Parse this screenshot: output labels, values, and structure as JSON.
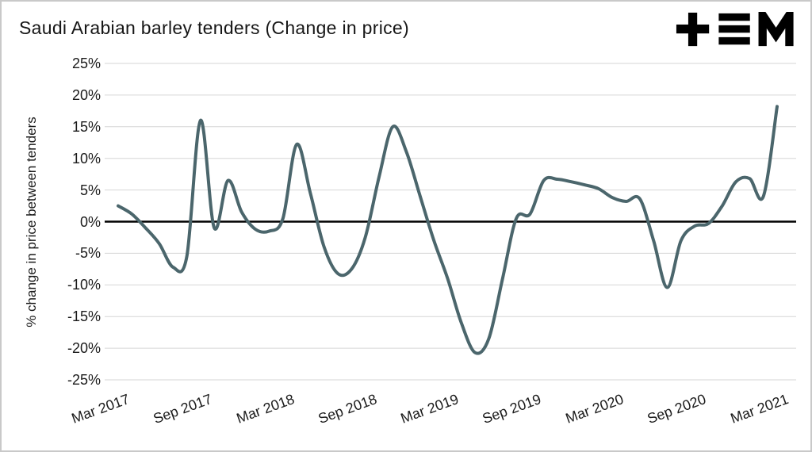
{
  "header": {
    "title": "Saudi Arabian barley tenders (Change in price)",
    "logo_icon": "tem-logo"
  },
  "chart_data": {
    "type": "line",
    "title": "Saudi Arabian barley tenders (Change in price)",
    "xlabel": "",
    "ylabel": "% change in price between tenders",
    "ylim": [
      -25,
      25
    ],
    "ytick_step": 5,
    "yticks": [
      "25%",
      "20%",
      "15%",
      "10%",
      "5%",
      "0%",
      "-5%",
      "-10%",
      "-15%",
      "-20%",
      "-25%"
    ],
    "xticks": [
      "Mar 2017",
      "Sep 2017",
      "Mar 2018",
      "Sep 2018",
      "Mar 2019",
      "Sep 2019",
      "Mar 2020",
      "Sep 2020",
      "Mar 2021"
    ],
    "x_tick_positions": [
      0,
      6,
      12,
      18,
      24,
      30,
      36,
      42,
      48
    ],
    "x_unit": "months since Mar 2017 (monthly estimates read from curve)",
    "grid": "horizontal",
    "legend": "none",
    "zero_line": true,
    "colors": {
      "line": "#4b666c",
      "grid": "#d6d6d6",
      "zero_line": "#000000",
      "text": "#1a1a1a"
    },
    "series": [
      {
        "name": "% change in price between tenders",
        "x": [
          0,
          1,
          2,
          3,
          4,
          5,
          6,
          7,
          8,
          9,
          10,
          11,
          12,
          13,
          14,
          15,
          16,
          17,
          18,
          19,
          20,
          21,
          22,
          23,
          24,
          25,
          26,
          27,
          28,
          29,
          30,
          31,
          32,
          33,
          34,
          35,
          36,
          37,
          38,
          39,
          40,
          41,
          42,
          43,
          44,
          45,
          46,
          47,
          48
        ],
        "values": [
          2.5,
          1.2,
          -1.0,
          -3.5,
          -7.2,
          -5.5,
          16.0,
          -1.0,
          6.5,
          1.5,
          -1.2,
          -1.5,
          0.5,
          12.2,
          4.5,
          -4.0,
          -8.2,
          -7.5,
          -2.5,
          7.0,
          15.0,
          11.0,
          4.0,
          -3.0,
          -9.0,
          -16.0,
          -20.7,
          -18.5,
          -9.0,
          0.5,
          1.2,
          6.5,
          6.7,
          6.3,
          5.8,
          5.2,
          3.8,
          3.2,
          3.6,
          -3.0,
          -10.4,
          -3.0,
          -0.7,
          -0.3,
          2.5,
          6.3,
          6.8,
          4.0,
          18.2
        ]
      }
    ]
  }
}
